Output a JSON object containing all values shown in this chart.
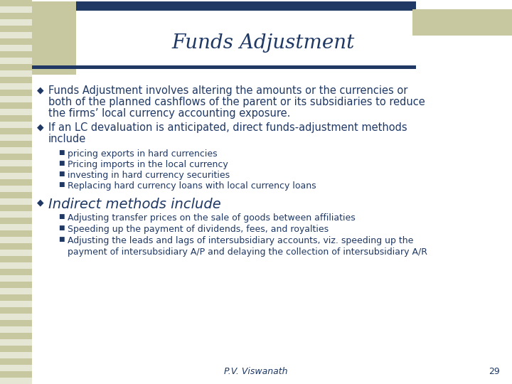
{
  "title": "Funds Adjustment",
  "title_color": "#1f3864",
  "bg_color": "#ffffff",
  "left_stripe_color": "#c8c8a0",
  "top_bar_color": "#1f3864",
  "accent_color": "#c8c8a0",
  "footer_text": "P.V. Viswanath",
  "page_number": "29",
  "bullet_color": "#1f3864",
  "text_color": "#1f3864",
  "bullet1_line1": "Funds Adjustment involves altering the amounts or the currencies or",
  "bullet1_line2": "both of the planned cashflows of the parent or its subsidiaries to reduce",
  "bullet1_line3": "the firms’ local currency accounting exposure.",
  "bullet2_line1": "If an LC devaluation is anticipated, direct funds-adjustment methods",
  "bullet2_line2": "include",
  "sub_bullets1": [
    "pricing exports in hard currencies",
    "Pricing imports in the local currency",
    "investing in hard currency securities",
    "Replacing hard currency loans with local currency loans"
  ],
  "bullet3": "Indirect methods include",
  "sub_bullets2": [
    "Adjusting transfer prices on the sale of goods between affiliaties",
    "Speeding up the payment of dividends, fees, and royalties",
    "Adjusting the leads and lags of intersubsidiary accounts, viz. speeding up the",
    "payment of intersubsidiary A/P and delaying the collection of intersubsidiary A/R"
  ],
  "sub_bullets2_indent": [
    false,
    false,
    false,
    true
  ]
}
